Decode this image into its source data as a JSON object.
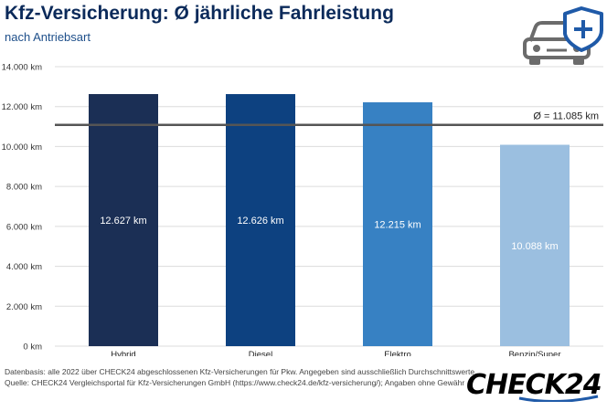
{
  "header": {
    "title": "Kfz-Versicherung: Ø jährliche Fahrleistung",
    "subtitle": "nach Antriebsart"
  },
  "icons": {
    "car": "car-shield-plus-icon"
  },
  "chart_data": {
    "type": "bar",
    "categories": [
      "Hybrid",
      "Diesel",
      "Elektro",
      "Benzin/Super"
    ],
    "values": [
      12627,
      12626,
      12215,
      10088
    ],
    "value_labels": [
      "12.627 km",
      "12.626 km",
      "12.215 km",
      "10.088 km"
    ],
    "colors": [
      "#1b2f55",
      "#0d4180",
      "#3781c3",
      "#9bbfe0"
    ],
    "ylim": [
      0,
      14000
    ],
    "yticks": [
      0,
      2000,
      4000,
      6000,
      8000,
      10000,
      12000,
      14000
    ],
    "ytick_labels": [
      "0 km",
      "2.000 km",
      "4.000 km",
      "6.000 km",
      "8.000 km",
      "10.000 km",
      "12.000 km",
      "14.000 km"
    ],
    "average": {
      "value": 11085,
      "label": "Ø = 11.085 km"
    },
    "grid": true,
    "legend": false
  },
  "footer": {
    "note1": "Datenbasis: alle 2022 über CHECK24 abgeschlossenen Kfz-Versicherungen für Pkw. Angegeben sind ausschließlich Durchschnittswerte.",
    "note2": "Quelle: CHECK24 Vergleichsportal für Kfz-Versicherungen GmbH (https://www.check24.de/kfz-versicherung/); Angaben ohne Gewähr",
    "logo": "CHECK24"
  }
}
